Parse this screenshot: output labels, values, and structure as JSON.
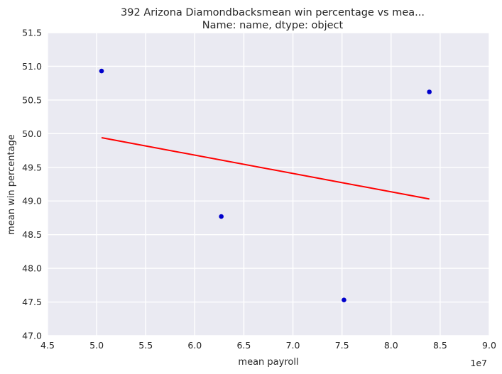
{
  "chart_data": {
    "type": "scatter",
    "title_line1": "392    Arizona Diamondbacksmean win percentage vs mea...",
    "title_line2": "Name: name, dtype: object",
    "xlabel": "mean payroll",
    "ylabel": "mean win percentage",
    "x_offset_label": "1e7",
    "xlim": [
      4.5,
      9.0
    ],
    "ylim": [
      47.0,
      51.5
    ],
    "x_ticks": [
      "4.5",
      "5.0",
      "5.5",
      "6.0",
      "6.5",
      "7.0",
      "7.5",
      "8.0",
      "8.5",
      "9.0"
    ],
    "y_ticks": [
      "47.0",
      "47.5",
      "48.0",
      "48.5",
      "49.0",
      "49.5",
      "50.0",
      "50.5",
      "51.0",
      "51.5"
    ],
    "grid": true,
    "colors": {
      "background": "#eaeaf2",
      "grid": "#ffffff",
      "points": "#0000cc",
      "fit_line": "#ff0000"
    },
    "series": [
      {
        "type": "scatter",
        "x": [
          5.05,
          6.27,
          7.52,
          8.39
        ],
        "y": [
          50.93,
          48.77,
          47.53,
          50.62
        ]
      },
      {
        "type": "line",
        "x": [
          5.05,
          8.39
        ],
        "y": [
          49.94,
          49.03
        ]
      }
    ]
  }
}
